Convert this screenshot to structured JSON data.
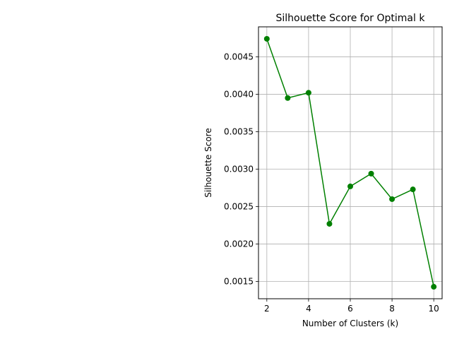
{
  "chart_data": {
    "type": "line",
    "title": "Silhouette Score for Optimal k",
    "xlabel": "Number of Clusters (k)",
    "ylabel": "Silhouette Score",
    "x": [
      2,
      3,
      4,
      5,
      6,
      7,
      8,
      9,
      10
    ],
    "series": [
      {
        "values": [
          0.00474,
          0.00395,
          0.00402,
          0.00227,
          0.00277,
          0.00294,
          0.0026,
          0.00273,
          0.00143
        ],
        "color": "#008000",
        "marker": "circle"
      }
    ],
    "xlim": [
      1.6,
      10.4
    ],
    "ylim": [
      0.00127,
      0.0049
    ],
    "xticks": [
      2,
      4,
      6,
      8,
      10
    ],
    "xtick_labels": [
      "2",
      "4",
      "6",
      "8",
      "10"
    ],
    "yticks": [
      0.0015,
      0.002,
      0.0025,
      0.003,
      0.0035,
      0.004,
      0.0045
    ],
    "ytick_labels": [
      "0.0015",
      "0.0020",
      "0.0025",
      "0.0030",
      "0.0035",
      "0.0040",
      "0.0045"
    ],
    "grid": true,
    "grid_color": "#b0b0b0"
  }
}
